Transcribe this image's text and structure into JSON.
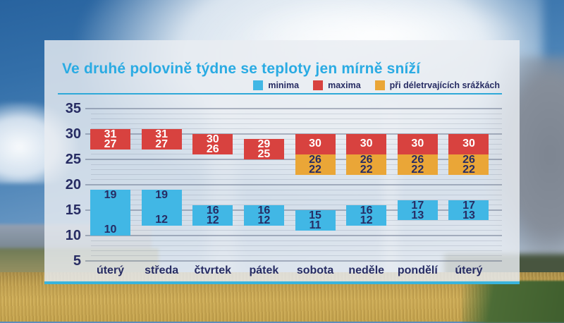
{
  "title": "Ve druhé polovině týdne se teploty jen mírně sníží",
  "colors": {
    "title_accent": "#2aabe3",
    "divider": "#2fa9d8",
    "panel_bottom_line": "#39b4dc",
    "axis_text": "#272c63"
  },
  "series_colors": {
    "minima": {
      "fill": "#41b7e5",
      "text": "#272c63"
    },
    "maxima": {
      "fill": "#d8423f",
      "text": "#ffffff"
    },
    "srazky": {
      "fill": "#eaa637",
      "text": "#272c63"
    }
  },
  "legend": [
    {
      "label": "minima",
      "series": "minima"
    },
    {
      "label": "maxima",
      "series": "maxima"
    },
    {
      "label": "při déletrvajících srážkách",
      "series": "srazky"
    }
  ],
  "chart_data": {
    "type": "bar",
    "title": "Ve druhé polovině týdne se teploty jen mírně sníží",
    "categories": [
      "úterý",
      "středa",
      "čtvrtek",
      "pátek",
      "sobota",
      "neděle",
      "pondělí",
      "úterý"
    ],
    "ylabel": "",
    "xlabel": "",
    "y_ticks": [
      35,
      30,
      25,
      20,
      15,
      10,
      5
    ],
    "ylim": [
      5,
      35
    ],
    "grid": true,
    "legend_position": "top-right",
    "days": [
      {
        "label": "úterý",
        "bars": [
          {
            "series": "maxima",
            "range": [
              27,
              31
            ],
            "values": [
              "31",
              "27"
            ]
          },
          {
            "series": "minima",
            "range": [
              10,
              19
            ],
            "values": [
              "19",
              "10"
            ]
          }
        ]
      },
      {
        "label": "středa",
        "bars": [
          {
            "series": "maxima",
            "range": [
              27,
              31
            ],
            "values": [
              "31",
              "27"
            ]
          },
          {
            "series": "minima",
            "range": [
              12,
              19
            ],
            "values": [
              "19",
              "12"
            ]
          }
        ]
      },
      {
        "label": "čtvrtek",
        "bars": [
          {
            "series": "maxima",
            "range": [
              26,
              30
            ],
            "values": [
              "30",
              "26"
            ]
          },
          {
            "series": "minima",
            "range": [
              12,
              16
            ],
            "values": [
              "16",
              "12"
            ]
          }
        ]
      },
      {
        "label": "pátek",
        "bars": [
          {
            "series": "maxima",
            "range": [
              25,
              29
            ],
            "values": [
              "29",
              "25"
            ]
          },
          {
            "series": "minima",
            "range": [
              12,
              16
            ],
            "values": [
              "16",
              "12"
            ]
          }
        ]
      },
      {
        "label": "sobota",
        "bars": [
          {
            "series": "maxima",
            "range": [
              26,
              30
            ],
            "values": [
              "30"
            ]
          },
          {
            "series": "srazky",
            "range": [
              22,
              26
            ],
            "values": [
              "26",
              "22"
            ]
          },
          {
            "series": "minima",
            "range": [
              11,
              15
            ],
            "values": [
              "15",
              "11"
            ]
          }
        ]
      },
      {
        "label": "neděle",
        "bars": [
          {
            "series": "maxima",
            "range": [
              26,
              30
            ],
            "values": [
              "30"
            ]
          },
          {
            "series": "srazky",
            "range": [
              22,
              26
            ],
            "values": [
              "26",
              "22"
            ]
          },
          {
            "series": "minima",
            "range": [
              12,
              16
            ],
            "values": [
              "16",
              "12"
            ]
          }
        ]
      },
      {
        "label": "pondělí",
        "bars": [
          {
            "series": "maxima",
            "range": [
              26,
              30
            ],
            "values": [
              "30"
            ]
          },
          {
            "series": "srazky",
            "range": [
              22,
              26
            ],
            "values": [
              "26",
              "22"
            ]
          },
          {
            "series": "minima",
            "range": [
              13,
              17
            ],
            "values": [
              "17",
              "13"
            ]
          }
        ]
      },
      {
        "label": "úterý",
        "bars": [
          {
            "series": "maxima",
            "range": [
              26,
              30
            ],
            "values": [
              "30"
            ]
          },
          {
            "series": "srazky",
            "range": [
              22,
              26
            ],
            "values": [
              "26",
              "22"
            ]
          },
          {
            "series": "minima",
            "range": [
              13,
              17
            ],
            "values": [
              "17",
              "13"
            ]
          }
        ]
      }
    ]
  }
}
